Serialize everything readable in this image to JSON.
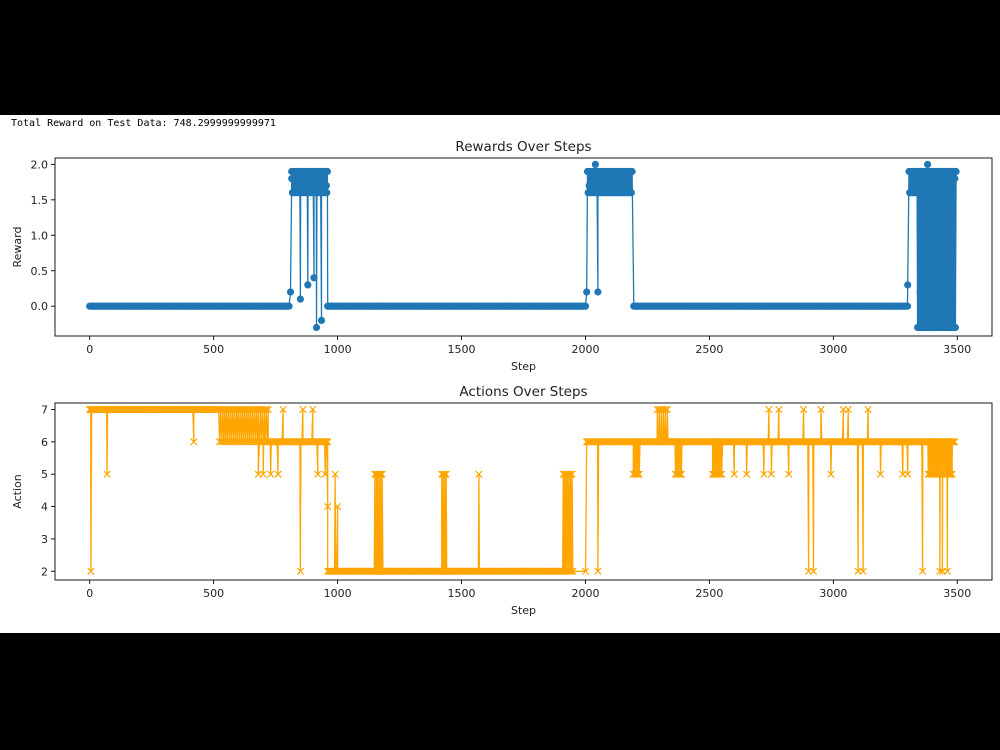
{
  "output": {
    "total_reward_text": "Total Reward on Test Data: 748.2999999999971"
  },
  "colors": {
    "rewards": "#1f77b4",
    "actions": "#ffa500"
  },
  "chart_data": [
    {
      "type": "line",
      "title": "Rewards Over Steps",
      "xlabel": "Step",
      "ylabel": "Reward",
      "marker": "circle",
      "xlim": [
        -140,
        3640
      ],
      "ylim": [
        -0.42,
        2.09
      ],
      "xticks": [
        0,
        500,
        1000,
        1500,
        2000,
        2500,
        3000,
        3500
      ],
      "xtick_labels": [
        "0",
        "500",
        "1000",
        "1500",
        "2000",
        "2500",
        "3000",
        "3500"
      ],
      "yticks": [
        0,
        0.5,
        1.0,
        1.5,
        2.0
      ],
      "ytick_labels": [
        "0.0",
        "0.5",
        "1.0",
        "1.5",
        "2.0"
      ],
      "segments": [
        {
          "kind": "flat",
          "x0": 0,
          "x1": 805,
          "y": 0
        },
        {
          "kind": "spikes",
          "x": [
            810,
            815,
            830,
            850,
            860,
            880,
            895,
            905,
            915,
            925,
            935,
            945,
            955
          ],
          "y": [
            0.2,
            1.8,
            1.7,
            0.1,
            1.9,
            0.3,
            1.75,
            0.4,
            -0.3,
            1.8,
            -0.2,
            1.9,
            1.7
          ]
        },
        {
          "kind": "dense",
          "x0": 815,
          "x1": 960,
          "y_low": 1.6,
          "y_high": 1.9,
          "step": 3
        },
        {
          "kind": "flat",
          "x0": 960,
          "x1": 2000,
          "y": 0
        },
        {
          "kind": "spikes",
          "x": [
            2005,
            2015,
            2040,
            2050,
            2060
          ],
          "y": [
            0.2,
            1.7,
            2.0,
            0.2,
            1.6
          ]
        },
        {
          "kind": "dense",
          "x0": 2008,
          "x1": 2190,
          "y_low": 1.6,
          "y_high": 1.9,
          "step": 3
        },
        {
          "kind": "flat",
          "x0": 2195,
          "x1": 3300,
          "y": 0
        },
        {
          "kind": "spikes",
          "x": [
            3300,
            3340,
            3350,
            3370,
            3380,
            3400,
            3420,
            3450,
            3470,
            3490
          ],
          "y": [
            0.3,
            -0.3,
            0.2,
            -0.2,
            2.0,
            -0.3,
            1.9,
            -0.25,
            0.1,
            1.8
          ]
        },
        {
          "kind": "dense",
          "x0": 3305,
          "x1": 3340,
          "y_low": 1.6,
          "y_high": 1.9,
          "step": 3
        },
        {
          "kind": "dense",
          "x0": 3340,
          "x1": 3495,
          "y_low": -0.3,
          "y_high": 1.9,
          "step": 2.5
        }
      ]
    },
    {
      "type": "line",
      "title": "Actions Over Steps",
      "xlabel": "Step",
      "ylabel": "Action",
      "marker": "x",
      "xlim": [
        -140,
        3640
      ],
      "ylim": [
        1.73,
        7.2
      ],
      "xticks": [
        0,
        500,
        1000,
        1500,
        2000,
        2500,
        3000,
        3500
      ],
      "xtick_labels": [
        "0",
        "500",
        "1000",
        "1500",
        "2000",
        "2500",
        "3000",
        "3500"
      ],
      "yticks": [
        2,
        3,
        4,
        5,
        6,
        7
      ],
      "ytick_labels": [
        "2",
        "3",
        "4",
        "5",
        "6",
        "7"
      ],
      "segments": [
        {
          "kind": "spikes",
          "x": [
            0,
            5,
            70,
            420
          ],
          "y": [
            7,
            2,
            5,
            6
          ]
        },
        {
          "kind": "flat",
          "x0": 0,
          "x1": 520,
          "y": 7
        },
        {
          "kind": "dense",
          "x0": 520,
          "x1": 720,
          "y_low": 6,
          "y_high": 7,
          "step": 4
        },
        {
          "kind": "spikes",
          "x": [
            680,
            700,
            730,
            760,
            780,
            850,
            860,
            880,
            900,
            920,
            930,
            950,
            960,
            975,
            990,
            1000
          ],
          "y": [
            5,
            5,
            5,
            5,
            7,
            2,
            7,
            6,
            7,
            5,
            6,
            5,
            4,
            2,
            5,
            4
          ]
        },
        {
          "kind": "flat",
          "x0": 720,
          "x1": 960,
          "y": 6
        },
        {
          "kind": "flat",
          "x0": 960,
          "x1": 1920,
          "y": 2
        },
        {
          "kind": "dense",
          "x0": 1150,
          "x1": 1185,
          "y_low": 2,
          "y_high": 5,
          "step": 3
        },
        {
          "kind": "dense",
          "x0": 1420,
          "x1": 1440,
          "y_low": 2,
          "y_high": 5,
          "step": 3
        },
        {
          "kind": "spikes",
          "x": [
            1570
          ],
          "y": [
            5
          ]
        },
        {
          "kind": "dense",
          "x0": 1910,
          "x1": 1950,
          "y_low": 2,
          "y_high": 5,
          "step": 3
        },
        {
          "kind": "spikes",
          "x": [
            2000,
            2005,
            2050
          ],
          "y": [
            2,
            6,
            2
          ]
        },
        {
          "kind": "flat",
          "x0": 2005,
          "x1": 3490,
          "y": 6
        },
        {
          "kind": "dense",
          "x0": 2190,
          "x1": 2220,
          "y_low": 5,
          "y_high": 6,
          "step": 3
        },
        {
          "kind": "dense",
          "x0": 2290,
          "x1": 2330,
          "y_low": 6,
          "y_high": 7,
          "step": 4
        },
        {
          "kind": "dense",
          "x0": 2360,
          "x1": 2390,
          "y_low": 5,
          "y_high": 6,
          "step": 3
        },
        {
          "kind": "dense",
          "x0": 2510,
          "x1": 2550,
          "y_low": 5,
          "y_high": 6,
          "step": 3
        },
        {
          "kind": "spikes",
          "x": [
            2600,
            2650,
            2720,
            2740,
            2750,
            2780,
            2820,
            2880,
            2900,
            2920,
            2950,
            2990,
            3040,
            3060,
            3100,
            3120,
            3140,
            3190,
            3280,
            3300,
            3360,
            3380,
            3420
          ],
          "y": [
            5,
            5,
            5,
            7,
            5,
            7,
            5,
            7,
            2,
            2,
            7,
            5,
            7,
            7,
            2,
            2,
            7,
            5,
            5,
            5,
            2,
            6,
            5
          ]
        },
        {
          "kind": "dense",
          "x0": 3380,
          "x1": 3480,
          "y_low": 5,
          "y_high": 6,
          "step": 3
        },
        {
          "kind": "spikes",
          "x": [
            3430,
            3440,
            3460,
            3470,
            3480
          ],
          "y": [
            2,
            2,
            2,
            5,
            6
          ]
        }
      ]
    }
  ]
}
